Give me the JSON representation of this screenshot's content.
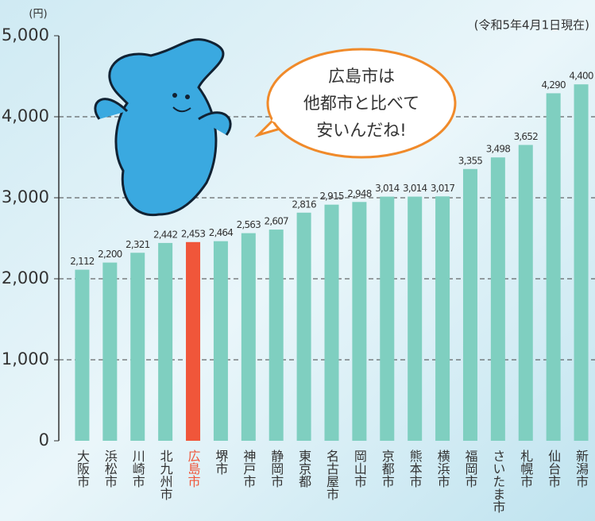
{
  "chart_data": {
    "type": "bar",
    "subtitle": "(令和5年4月1日現在)",
    "y_unit": "(円)",
    "annotation": [
      "広島市は",
      "他都市と比べて",
      "安いんだね!"
    ],
    "categories": [
      "大阪市",
      "浜松市",
      "川崎市",
      "北九州市",
      "広島市",
      "堺市",
      "神戸市",
      "静岡市",
      "東京都",
      "名古屋市",
      "岡山市",
      "京都市",
      "熊本市",
      "横浜市",
      "福岡市",
      "さいたま市",
      "札幌市",
      "仙台市",
      "新潟市"
    ],
    "values": [
      2112,
      2200,
      2321,
      2442,
      2453,
      2464,
      2563,
      2607,
      2816,
      2915,
      2948,
      3014,
      3014,
      3017,
      3355,
      3498,
      3652,
      4290,
      4400
    ],
    "value_labels": [
      "2,112",
      "2,200",
      "2,321",
      "2,442",
      "2,453",
      "2,464",
      "2,563",
      "2,607",
      "2,816",
      "2,915",
      "2,948",
      "3,014",
      "3,014",
      "3,017",
      "3,355",
      "3,498",
      "3,652",
      "4,290",
      "4,400"
    ],
    "color": "#7fcfc0",
    "colors": [
      "#7fcfc0",
      "#7fcfc0",
      "#7fcfc0",
      "#7fcfc0",
      "#f0563a",
      "#7fcfc0",
      "#7fcfc0",
      "#7fcfc0",
      "#7fcfc0",
      "#7fcfc0",
      "#7fcfc0",
      "#7fcfc0",
      "#7fcfc0",
      "#7fcfc0",
      "#7fcfc0",
      "#7fcfc0",
      "#7fcfc0",
      "#7fcfc0",
      "#7fcfc0"
    ],
    "ylim": [
      0,
      5000
    ],
    "yticks": [
      0,
      {
        "value": 1000,
        "label": "1,000"
      },
      {
        "value": 2000,
        "label": "2,000"
      },
      {
        "value": 3000,
        "label": "3,000"
      },
      {
        "value": 4000,
        "label": "4,000"
      },
      {
        "value": 5000,
        "label": "5,000"
      }
    ],
    "grid": true
  }
}
